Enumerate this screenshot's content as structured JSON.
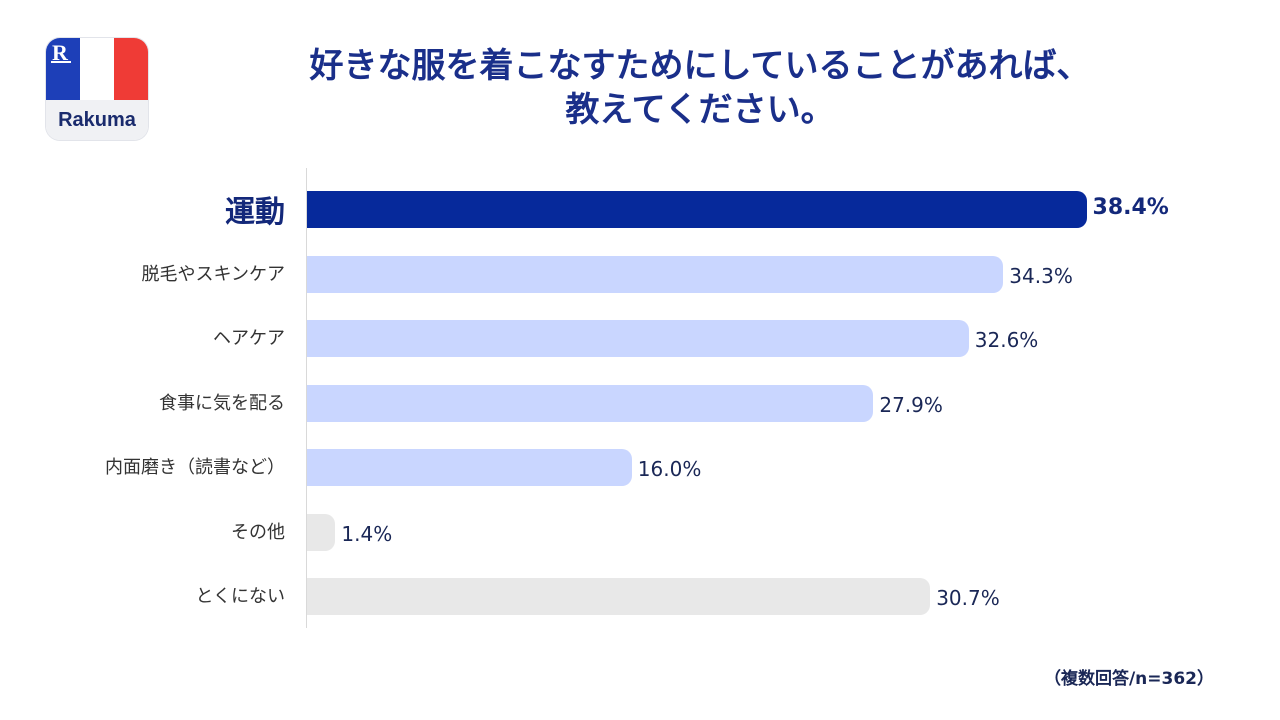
{
  "logo": {
    "mark": "R",
    "wordmark": "Rakuma"
  },
  "header": {
    "title_line1": "好きな服を着こなすためにしていることがあれば、",
    "title_line2": "教えてください。"
  },
  "note": "（複数回答/n=362）",
  "colors": {
    "highlight": "#06299b",
    "normal": "#c9d6ff",
    "other": "#e8e8e8"
  },
  "chart_data": {
    "type": "bar",
    "orientation": "horizontal",
    "categories": [
      "運動",
      "脱毛やスキンケア",
      "ヘアケア",
      "食事に気を配る",
      "内面磨き（読書など）",
      "その他",
      "とくにない"
    ],
    "values": [
      38.4,
      34.3,
      32.6,
      27.9,
      16.0,
      1.4,
      30.7
    ],
    "labels": [
      "38.4%",
      "34.3%",
      "32.6%",
      "27.9%",
      "16.0%",
      "1.4%",
      "30.7%"
    ],
    "title": "好きな服を着こなすためにしていることがあれば、教えてください。",
    "xlim": [
      0,
      60
    ],
    "grid": false
  }
}
